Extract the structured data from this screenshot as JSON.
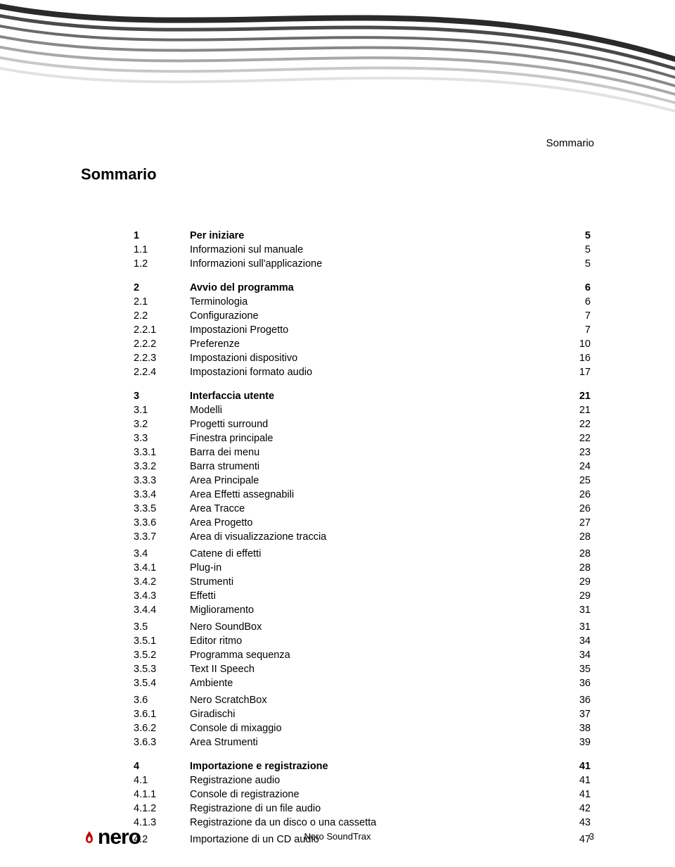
{
  "header_label": "Sommario",
  "title": "Sommario",
  "footer_center": "Nero SoundTrax",
  "footer_page": "3",
  "footer_logo": "nero",
  "colors": {
    "text": "#000000",
    "background": "#ffffff",
    "wave_dark": "#3a3a3a",
    "wave_mid": "#8a8a8a",
    "wave_light": "#d0d0d0",
    "flame": "#c00000"
  },
  "toc": [
    {
      "type": "row",
      "bold": true,
      "num": "1",
      "label": "Per iniziare",
      "page": "5"
    },
    {
      "type": "row",
      "bold": false,
      "num": "1.1",
      "label": "Informazioni sul manuale",
      "page": "5"
    },
    {
      "type": "row",
      "bold": false,
      "num": "1.2",
      "label": "Informazioni sull'applicazione",
      "page": "5"
    },
    {
      "type": "gap"
    },
    {
      "type": "row",
      "bold": true,
      "num": "2",
      "label": "Avvio del programma",
      "page": "6"
    },
    {
      "type": "row",
      "bold": false,
      "num": "2.1",
      "label": "Terminologia",
      "page": "6"
    },
    {
      "type": "row",
      "bold": false,
      "num": "2.2",
      "label": "Configurazione",
      "page": "7"
    },
    {
      "type": "row",
      "bold": false,
      "num": "2.2.1",
      "label": "Impostazioni Progetto",
      "page": "7"
    },
    {
      "type": "row",
      "bold": false,
      "num": "2.2.2",
      "label": "Preferenze",
      "page": "10"
    },
    {
      "type": "row",
      "bold": false,
      "num": "2.2.3",
      "label": "Impostazioni dispositivo",
      "page": "16"
    },
    {
      "type": "row",
      "bold": false,
      "num": "2.2.4",
      "label": "Impostazioni formato audio",
      "page": "17"
    },
    {
      "type": "gap"
    },
    {
      "type": "row",
      "bold": true,
      "num": "3",
      "label": "Interfaccia utente",
      "page": "21"
    },
    {
      "type": "row",
      "bold": false,
      "num": "3.1",
      "label": "Modelli",
      "page": "21"
    },
    {
      "type": "row",
      "bold": false,
      "num": "3.2",
      "label": "Progetti surround",
      "page": "22"
    },
    {
      "type": "row",
      "bold": false,
      "num": "3.3",
      "label": "Finestra principale",
      "page": "22"
    },
    {
      "type": "row",
      "bold": false,
      "num": "3.3.1",
      "label": "Barra dei menu",
      "page": "23"
    },
    {
      "type": "row",
      "bold": false,
      "num": "3.3.2",
      "label": "Barra strumenti",
      "page": "24"
    },
    {
      "type": "row",
      "bold": false,
      "num": "3.3.3",
      "label": "Area Principale",
      "page": "25"
    },
    {
      "type": "row",
      "bold": false,
      "num": "3.3.4",
      "label": "Area Effetti assegnabili",
      "page": "26"
    },
    {
      "type": "row",
      "bold": false,
      "num": "3.3.5",
      "label": "Area Tracce",
      "page": "26"
    },
    {
      "type": "row",
      "bold": false,
      "num": "3.3.6",
      "label": "Area Progetto",
      "page": "27"
    },
    {
      "type": "row",
      "bold": false,
      "num": "3.3.7",
      "label": "Area di visualizzazione traccia",
      "page": "28"
    },
    {
      "type": "subgap"
    },
    {
      "type": "row",
      "bold": false,
      "num": "3.4",
      "label": "Catene di effetti",
      "page": "28"
    },
    {
      "type": "row",
      "bold": false,
      "num": "3.4.1",
      "label": "Plug-in",
      "page": "28"
    },
    {
      "type": "row",
      "bold": false,
      "num": "3.4.2",
      "label": "Strumenti",
      "page": "29"
    },
    {
      "type": "row",
      "bold": false,
      "num": "3.4.3",
      "label": "Effetti",
      "page": "29"
    },
    {
      "type": "row",
      "bold": false,
      "num": "3.4.4",
      "label": "Miglioramento",
      "page": "31"
    },
    {
      "type": "subgap"
    },
    {
      "type": "row",
      "bold": false,
      "num": "3.5",
      "label": "Nero SoundBox",
      "page": "31"
    },
    {
      "type": "row",
      "bold": false,
      "num": "3.5.1",
      "label": "Editor ritmo",
      "page": "34"
    },
    {
      "type": "row",
      "bold": false,
      "num": "3.5.2",
      "label": "Programma sequenza",
      "page": "34"
    },
    {
      "type": "row",
      "bold": false,
      "num": "3.5.3",
      "label": "Text II Speech",
      "page": "35"
    },
    {
      "type": "row",
      "bold": false,
      "num": "3.5.4",
      "label": "Ambiente",
      "page": "36"
    },
    {
      "type": "subgap"
    },
    {
      "type": "row",
      "bold": false,
      "num": "3.6",
      "label": "Nero ScratchBox",
      "page": "36"
    },
    {
      "type": "row",
      "bold": false,
      "num": "3.6.1",
      "label": "Giradischi",
      "page": "37"
    },
    {
      "type": "row",
      "bold": false,
      "num": "3.6.2",
      "label": "Console di mixaggio",
      "page": "38"
    },
    {
      "type": "row",
      "bold": false,
      "num": "3.6.3",
      "label": "Area Strumenti",
      "page": "39"
    },
    {
      "type": "gap"
    },
    {
      "type": "row",
      "bold": true,
      "num": "4",
      "label": "Importazione e registrazione",
      "page": "41"
    },
    {
      "type": "row",
      "bold": false,
      "num": "4.1",
      "label": "Registrazione audio",
      "page": "41"
    },
    {
      "type": "row",
      "bold": false,
      "num": "4.1.1",
      "label": "Console di registrazione",
      "page": "41"
    },
    {
      "type": "row",
      "bold": false,
      "num": "4.1.2",
      "label": "Registrazione di un file audio",
      "page": "42"
    },
    {
      "type": "row",
      "bold": false,
      "num": "4.1.3",
      "label": "Registrazione da un disco o una cassetta",
      "page": "43"
    },
    {
      "type": "subgap"
    },
    {
      "type": "row",
      "bold": false,
      "num": "4.2",
      "label": "Importazione di un CD audio",
      "page": "47"
    }
  ]
}
